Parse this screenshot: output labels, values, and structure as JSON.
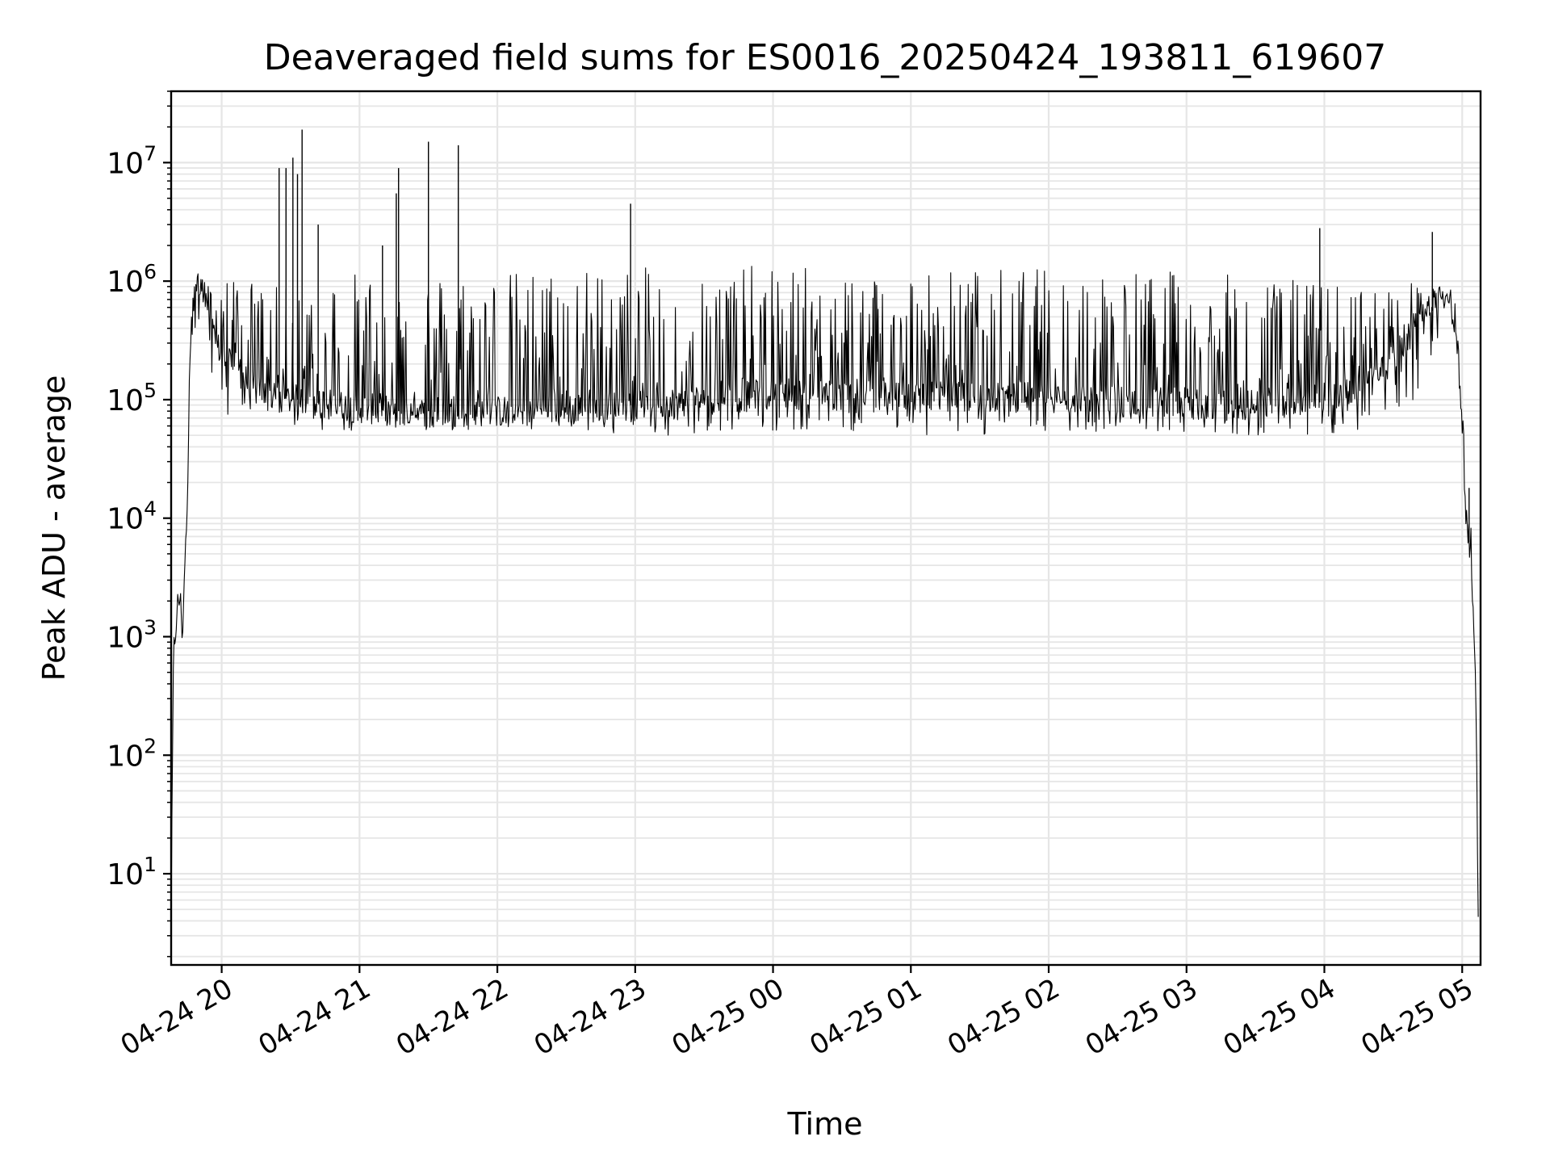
{
  "chart_data": {
    "type": "line",
    "title": "Deaveraged field sums for ES0016_20250424_193811_619607",
    "xlabel": "Time",
    "ylabel": "Peak ADU - average",
    "xscale": "time",
    "yscale": "log",
    "xlim": [
      "2025-04-24 19:38",
      "2025-04-25 05:08"
    ],
    "ylim": [
      1.7,
      40000000
    ],
    "grid": true,
    "legend": "none",
    "line_color": "#000000",
    "grid_color": "#e6e6e6",
    "x_tick_values": [
      "2025-04-24 20:00",
      "2025-04-24 21:00",
      "2025-04-24 22:00",
      "2025-04-24 23:00",
      "2025-04-25 00:00",
      "2025-04-25 01:00",
      "2025-04-25 02:00",
      "2025-04-25 03:00",
      "2025-04-25 04:00",
      "2025-04-25 05:00"
    ],
    "x_tick_labels": [
      "04-24 20",
      "04-24 21",
      "04-24 22",
      "04-24 23",
      "04-25 00",
      "04-25 01",
      "04-25 02",
      "04-25 03",
      "04-25 04",
      "04-25 05"
    ],
    "y_tick_values": [
      10,
      100,
      1000,
      10000,
      100000,
      1000000,
      10000000
    ],
    "y_tick_labels": [
      {
        "base": "10",
        "exp": "1"
      },
      {
        "base": "10",
        "exp": "2"
      },
      {
        "base": "10",
        "exp": "3"
      },
      {
        "base": "10",
        "exp": "4"
      },
      {
        "base": "10",
        "exp": "5"
      },
      {
        "base": "10",
        "exp": "6"
      },
      {
        "base": "10",
        "exp": "7"
      }
    ],
    "series": [
      {
        "x": [
          "2025-04-24 19:38",
          "2025-04-24 19:39",
          "2025-04-24 19:40",
          "2025-04-24 19:41",
          "2025-04-24 19:42",
          "2025-04-24 19:43",
          "2025-04-24 19:44",
          "2025-04-24 19:45",
          "2025-04-24 19:46",
          "2025-04-24 19:47",
          "2025-04-24 19:48",
          "2025-04-24 19:49",
          "2025-04-24 19:50",
          "2025-04-24 19:51",
          "2025-04-24 19:52",
          "2025-04-24 19:53",
          "2025-04-24 19:55",
          "2025-04-24 19:57",
          "2025-04-24 20:00",
          "2025-04-24 20:05",
          "2025-04-24 20:10",
          "2025-04-24 20:15",
          "2025-04-24 20:20",
          "2025-04-24 20:30",
          "2025-04-24 20:35",
          "2025-04-24 20:40",
          "2025-04-24 20:50",
          "2025-04-24 21:00",
          "2025-04-24 21:15",
          "2025-04-24 21:30",
          "2025-04-24 21:45",
          "2025-04-24 22:00",
          "2025-04-24 22:30",
          "2025-04-24 23:00",
          "2025-04-24 23:30",
          "2025-04-25 00:00",
          "2025-04-25 00:30",
          "2025-04-25 01:00",
          "2025-04-25 01:30",
          "2025-04-25 02:00",
          "2025-04-25 02:30",
          "2025-04-25 03:00",
          "2025-04-25 03:30",
          "2025-04-25 04:00",
          "2025-04-25 04:15",
          "2025-04-25 04:30",
          "2025-04-25 04:40",
          "2025-04-25 04:50",
          "2025-04-25 04:55",
          "2025-04-25 04:58",
          "2025-04-25 05:00",
          "2025-04-25 05:02",
          "2025-04-25 05:04",
          "2025-04-25 05:05",
          "2025-04-25 05:06",
          "2025-04-25 05:07"
        ],
        "y": [
          4,
          700,
          1200,
          2000,
          2000,
          1000,
          5000,
          12000,
          200000,
          600000,
          800000,
          1000000,
          900000,
          800000,
          700000,
          600000,
          400000,
          300000,
          250000,
          200000,
          150000,
          120000,
          110000,
          100000,
          100000,
          95000,
          90000,
          85000,
          80000,
          80000,
          80000,
          80000,
          85000,
          90000,
          100000,
          110000,
          110000,
          110000,
          105000,
          105000,
          100000,
          95000,
          90000,
          95000,
          120000,
          220000,
          400000,
          650000,
          750000,
          300000,
          60000,
          8000,
          5000,
          1000,
          300,
          4
        ],
        "low": [
          4,
          700,
          1200,
          2000,
          2000,
          1000,
          5000,
          12000,
          200000,
          350000,
          350000,
          300000,
          250000,
          200000,
          150000,
          120000,
          100000,
          90000,
          80000,
          70000,
          65000,
          60000,
          60000,
          60000,
          60000,
          55000,
          55000,
          55000,
          55000,
          55000,
          55000,
          55000,
          55000,
          50000,
          50000,
          55000,
          55000,
          50000,
          50000,
          50000,
          50000,
          50000,
          50000,
          50000,
          55000,
          60000,
          100000,
          300000,
          500000,
          200000,
          50000,
          5000,
          4000,
          800,
          200,
          4
        ],
        "high": [
          4,
          700,
          1200,
          2000,
          2000,
          1000,
          5000,
          12000,
          250000,
          800000,
          1100000,
          1300000,
          1400000,
          1300000,
          1200000,
          1000000,
          900000,
          1000000,
          1100000,
          1200000,
          1100000,
          1000000,
          900000,
          900000,
          1000000,
          1100000,
          1200000,
          1200000,
          1200000,
          1200000,
          1200000,
          1200000,
          1300000,
          1300000,
          1350000,
          1350000,
          1300000,
          1300000,
          1300000,
          1300000,
          1300000,
          1200000,
          1100000,
          1000000,
          900000,
          900000,
          1000000,
          900000,
          850000,
          600000,
          100000,
          15000,
          8000,
          2000,
          500,
          4
        ]
      }
    ],
    "spikes": [
      {
        "x": "2025-04-24 20:25",
        "y": 9000000
      },
      {
        "x": "2025-04-24 20:28",
        "y": 9000000
      },
      {
        "x": "2025-04-24 20:31",
        "y": 11000000
      },
      {
        "x": "2025-04-24 20:33",
        "y": 8000000
      },
      {
        "x": "2025-04-24 20:35",
        "y": 19000000
      },
      {
        "x": "2025-04-24 20:42",
        "y": 3000000
      },
      {
        "x": "2025-04-24 21:10",
        "y": 2000000
      },
      {
        "x": "2025-04-24 21:16",
        "y": 5500000
      },
      {
        "x": "2025-04-24 21:17",
        "y": 9000000
      },
      {
        "x": "2025-04-24 21:30",
        "y": 15000000
      },
      {
        "x": "2025-04-24 21:43",
        "y": 14000000
      },
      {
        "x": "2025-04-24 22:58",
        "y": 4500000
      },
      {
        "x": "2025-04-25 03:58",
        "y": 2800000
      },
      {
        "x": "2025-04-25 04:47",
        "y": 2600000
      },
      {
        "x": "2025-04-25 05:03",
        "y": 18000
      }
    ]
  }
}
